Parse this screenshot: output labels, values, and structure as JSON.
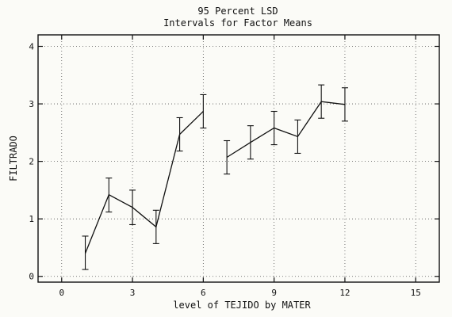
{
  "chart_data": {
    "type": "line",
    "title": "95 Percent LSD",
    "subtitle": "Intervals for Factor Means",
    "xlabel": "level of TEJIDO by MATER",
    "ylabel": "FILTRADO",
    "xlim": [
      -1,
      16
    ],
    "ylim": [
      -0.1,
      4.2
    ],
    "xticks": [
      0,
      3,
      6,
      9,
      12,
      15
    ],
    "yticks": [
      0,
      1,
      2,
      3,
      4
    ],
    "grid": true,
    "segments": [
      {
        "x": [
          1,
          2,
          3,
          4,
          5,
          6
        ],
        "mean": [
          0.4,
          1.42,
          1.2,
          0.86,
          2.47,
          2.87
        ],
        "lower": [
          0.12,
          1.12,
          0.9,
          0.57,
          2.18,
          2.58
        ],
        "upper": [
          0.7,
          1.71,
          1.5,
          1.15,
          2.76,
          3.16
        ]
      },
      {
        "x": [
          7,
          8,
          9,
          10,
          11,
          12
        ],
        "mean": [
          2.07,
          2.33,
          2.58,
          2.43,
          3.04,
          2.99
        ],
        "lower": [
          1.78,
          2.04,
          2.29,
          2.14,
          2.75,
          2.7
        ],
        "upper": [
          2.36,
          2.62,
          2.87,
          2.72,
          3.33,
          3.28
        ]
      }
    ]
  }
}
